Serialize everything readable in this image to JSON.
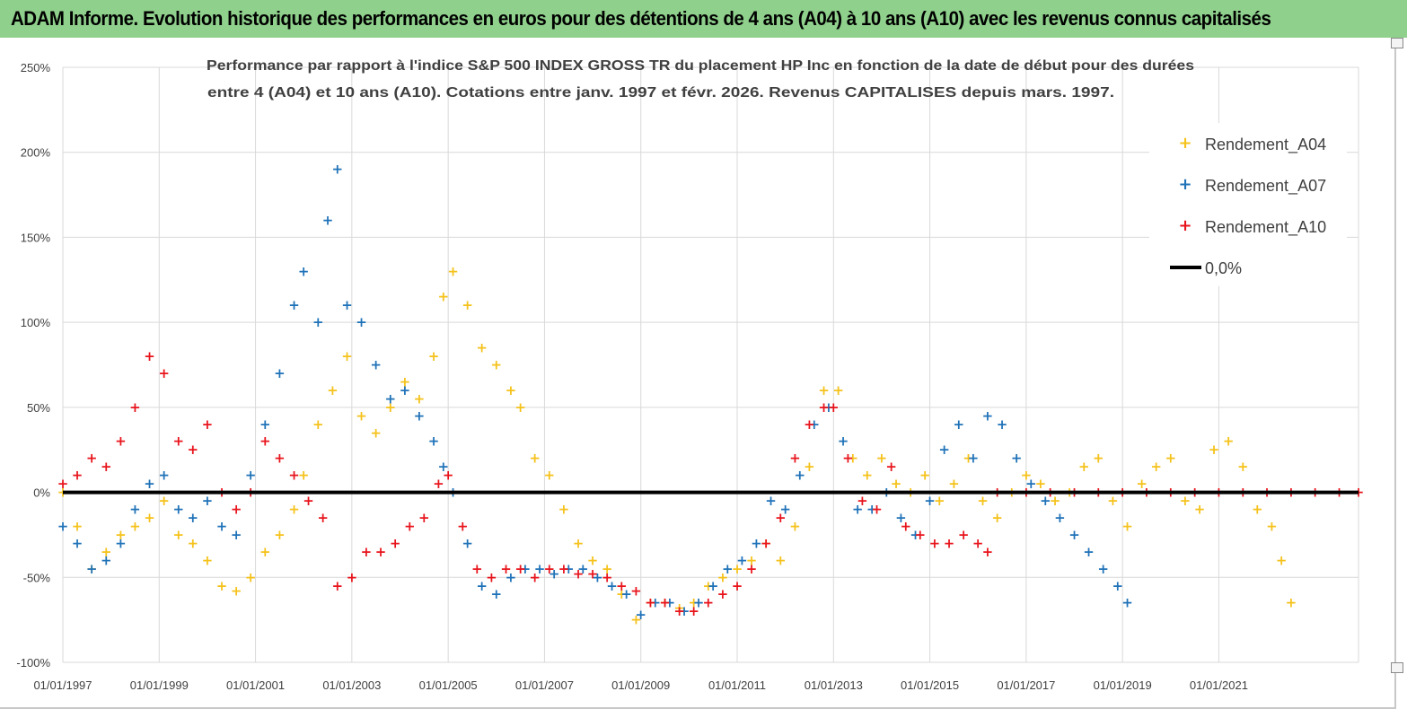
{
  "banner": {
    "title": "ADAM Informe. Evolution historique des performances en euros pour des détentions de 4 ans (A04) à 10 ans (A10) avec les revenus connus capitalisés"
  },
  "colors": {
    "banner_bg": "#8fd08c",
    "a04": "#f5c21b",
    "a07": "#1f72b8",
    "a10": "#e8141c",
    "zero_line": "#000000",
    "grid": "#d9d9d9"
  },
  "chart_data": {
    "type": "scatter",
    "title_line1": "Performance par rapport à l'indice S&P 500 INDEX GROSS TR  du placement HP Inc en fonction de la date de début pour des durées",
    "title_line2": "entre 4 (A04) et 10 ans (A10). Cotations entre janv. 1997 et févr. 2026. Revenus CAPITALISES depuis mars. 1997.",
    "xlim": [
      1997.0,
      2023.9
    ],
    "ylim": [
      -100,
      250
    ],
    "y_ticks": [
      250,
      200,
      150,
      100,
      50,
      0,
      -50,
      -100
    ],
    "y_tick_labels": [
      "250%",
      "200%",
      "150%",
      "100%",
      "50%",
      "0%",
      "-50%",
      "-100%"
    ],
    "x_ticks": [
      1997,
      1999,
      2001,
      2003,
      2005,
      2007,
      2009,
      2011,
      2013,
      2015,
      2017,
      2019,
      2021
    ],
    "x_tick_labels": [
      "01/01/1997",
      "01/01/1999",
      "01/01/2001",
      "01/01/2003",
      "01/01/2005",
      "01/01/2007",
      "01/01/2009",
      "01/01/2011",
      "01/01/2013",
      "01/01/2015",
      "01/01/2017",
      "01/01/2019",
      "01/01/2021"
    ],
    "legend_position": "top-right",
    "legend": [
      "Rendement_A04",
      "Rendement_A07",
      "Rendement_A10",
      "0,0%"
    ],
    "zero_line": {
      "name": "0,0%",
      "value": 0
    },
    "series": [
      {
        "name": "Rendement_A04",
        "color_key": "a04",
        "x": [
          1997.0,
          1997.3,
          1997.6,
          1997.9,
          1998.2,
          1998.5,
          1998.8,
          1999.1,
          1999.4,
          1999.7,
          2000.0,
          2000.3,
          2000.6,
          2000.9,
          2001.2,
          2001.5,
          2001.8,
          2002.0,
          2002.3,
          2002.6,
          2002.9,
          2003.2,
          2003.5,
          2003.8,
          2004.1,
          2004.4,
          2004.7,
          2004.9,
          2005.1,
          2005.4,
          2005.7,
          2006.0,
          2006.3,
          2006.5,
          2006.8,
          2007.1,
          2007.4,
          2007.7,
          2008.0,
          2008.3,
          2008.6,
          2008.9,
          2009.2,
          2009.5,
          2009.8,
          2010.1,
          2010.4,
          2010.7,
          2011.0,
          2011.3,
          2011.6,
          2011.9,
          2012.2,
          2012.5,
          2012.8,
          2013.1,
          2013.4,
          2013.7,
          2014.0,
          2014.3,
          2014.6,
          2014.9,
          2015.2,
          2015.5,
          2015.8,
          2016.1,
          2016.4,
          2016.7,
          2017.0,
          2017.3,
          2017.6,
          2017.9,
          2018.2,
          2018.5,
          2018.8,
          2019.1,
          2019.4,
          2019.7,
          2020.0,
          2020.3,
          2020.6,
          2020.9,
          2021.2,
          2021.5,
          2021.8,
          2022.1,
          2022.3,
          2022.5
        ],
        "y": [
          0,
          -20,
          -45,
          -35,
          -25,
          -20,
          -15,
          -5,
          -25,
          -30,
          -40,
          -55,
          -58,
          -50,
          -35,
          -25,
          -10,
          10,
          40,
          60,
          80,
          45,
          35,
          50,
          65,
          55,
          80,
          115,
          130,
          110,
          85,
          75,
          60,
          50,
          20,
          10,
          -10,
          -30,
          -40,
          -45,
          -60,
          -75,
          -65,
          -65,
          -68,
          -65,
          -55,
          -50,
          -45,
          -40,
          -30,
          -40,
          -20,
          15,
          60,
          60,
          20,
          10,
          20,
          5,
          0,
          10,
          -5,
          5,
          20,
          -5,
          -15,
          0,
          10,
          5,
          -5,
          0,
          15,
          20,
          -5,
          -20,
          5,
          15,
          20,
          -5,
          -10,
          25,
          30,
          15,
          -10,
          -20,
          -40,
          -65
        ]
      },
      {
        "name": "Rendement_A07",
        "color_key": "a07",
        "x": [
          1997.0,
          1997.3,
          1997.6,
          1997.9,
          1998.2,
          1998.5,
          1998.8,
          1999.1,
          1999.4,
          1999.7,
          2000.0,
          2000.3,
          2000.6,
          2000.9,
          2001.2,
          2001.5,
          2001.8,
          2002.0,
          2002.3,
          2002.5,
          2002.7,
          2002.9,
          2003.2,
          2003.5,
          2003.8,
          2004.1,
          2004.4,
          2004.7,
          2004.9,
          2005.1,
          2005.4,
          2005.7,
          2006.0,
          2006.3,
          2006.6,
          2006.9,
          2007.2,
          2007.5,
          2007.8,
          2008.1,
          2008.4,
          2008.7,
          2009.0,
          2009.3,
          2009.6,
          2009.9,
          2010.2,
          2010.5,
          2010.8,
          2011.1,
          2011.4,
          2011.7,
          2012.0,
          2012.3,
          2012.6,
          2012.9,
          2013.2,
          2013.5,
          2013.8,
          2014.1,
          2014.4,
          2014.7,
          2015.0,
          2015.3,
          2015.6,
          2015.9,
          2016.2,
          2016.5,
          2016.8,
          2017.1,
          2017.4,
          2017.7,
          2018.0,
          2018.3,
          2018.6,
          2018.9,
          2019.1
        ],
        "y": [
          -20,
          -30,
          -45,
          -40,
          -30,
          -10,
          5,
          10,
          -10,
          -15,
          -5,
          -20,
          -25,
          10,
          40,
          70,
          110,
          130,
          100,
          160,
          190,
          110,
          100,
          75,
          55,
          60,
          45,
          30,
          15,
          0,
          -30,
          -55,
          -60,
          -50,
          -45,
          -45,
          -48,
          -45,
          -45,
          -50,
          -55,
          -60,
          -72,
          -65,
          -65,
          -70,
          -65,
          -55,
          -45,
          -40,
          -30,
          -5,
          -10,
          10,
          40,
          50,
          30,
          -10,
          -10,
          0,
          -15,
          -25,
          -5,
          25,
          40,
          20,
          45,
          40,
          20,
          5,
          -5,
          -15,
          -25,
          -35,
          -45,
          -55,
          -65
        ]
      },
      {
        "name": "Rendement_A10",
        "color_key": "a10",
        "x": [
          1997.0,
          1997.3,
          1997.6,
          1997.9,
          1998.2,
          1998.5,
          1998.8,
          1999.1,
          1999.4,
          1999.7,
          2000.0,
          2000.3,
          2000.6,
          2000.9,
          2001.2,
          2001.5,
          2001.8,
          2002.1,
          2002.4,
          2002.7,
          2003.0,
          2003.3,
          2003.6,
          2003.9,
          2004.2,
          2004.5,
          2004.8,
          2005.0,
          2005.3,
          2005.6,
          2005.9,
          2006.2,
          2006.5,
          2006.8,
          2007.1,
          2007.4,
          2007.7,
          2008.0,
          2008.3,
          2008.6,
          2008.9,
          2009.2,
          2009.5,
          2009.8,
          2010.1,
          2010.4,
          2010.7,
          2011.0,
          2011.3,
          2011.6,
          2011.9,
          2012.2,
          2012.5,
          2012.8,
          2013.0,
          2013.3,
          2013.6,
          2013.9,
          2014.2,
          2014.5,
          2014.8,
          2015.1,
          2015.4,
          2015.7,
          2016.0,
          2016.2,
          2016.4,
          2017.0,
          2017.5,
          2018.0,
          2018.5,
          2019.0,
          2019.5,
          2020.0,
          2020.5,
          2021.0,
          2021.5,
          2022.0,
          2022.5,
          2023.0,
          2023.5,
          2023.9
        ],
        "y": [
          5,
          10,
          20,
          15,
          30,
          50,
          80,
          70,
          30,
          25,
          40,
          0,
          -10,
          0,
          30,
          20,
          10,
          -5,
          -15,
          -55,
          -50,
          -35,
          -35,
          -30,
          -20,
          -15,
          5,
          10,
          -20,
          -45,
          -50,
          -45,
          -45,
          -50,
          -45,
          -45,
          -48,
          -48,
          -50,
          -55,
          -58,
          -65,
          -65,
          -70,
          -70,
          -65,
          -60,
          -55,
          -45,
          -30,
          -15,
          20,
          40,
          50,
          50,
          20,
          -5,
          -10,
          15,
          -20,
          -25,
          -30,
          -30,
          -25,
          -30,
          -35,
          0,
          0,
          0,
          0,
          0,
          0,
          0,
          0,
          0,
          0,
          0,
          0,
          0,
          0,
          0,
          0
        ]
      }
    ]
  }
}
